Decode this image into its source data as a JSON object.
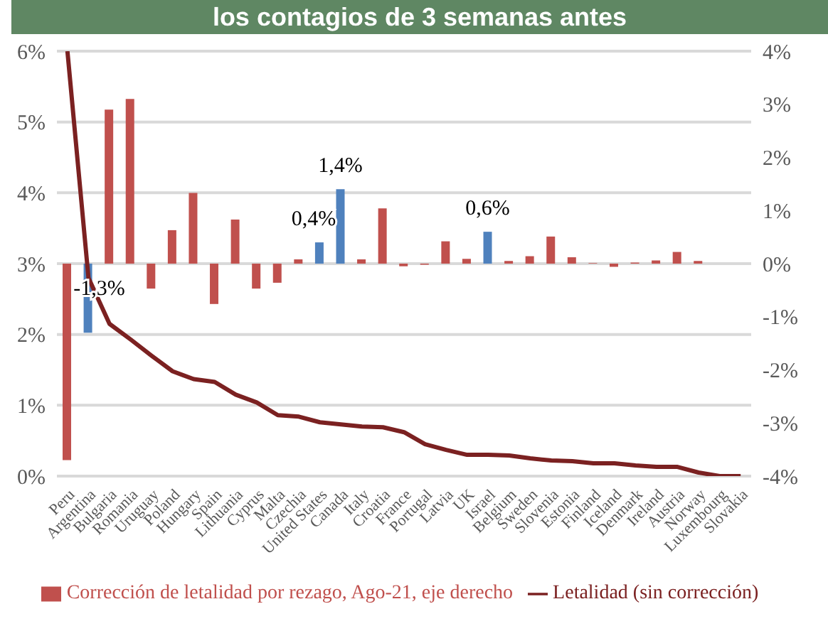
{
  "chart_data": {
    "type": "bar",
    "title": "los contagios de 3 semanas antes",
    "categories": [
      "Peru",
      "Argentina",
      "Bulgaria",
      "Romania",
      "Uruguay",
      "Poland",
      "Hungary",
      "Spain",
      "Lithuania",
      "Cyprus",
      "Malta",
      "Czechia",
      "United States",
      "Canada",
      "Italy",
      "Croatia",
      "France",
      "Portugal",
      "Latvia",
      "UK",
      "Israel",
      "Belgium",
      "Sweden",
      "Slovenia",
      "Estonia",
      "Finland",
      "Iceland",
      "Denmark",
      "Ireland",
      "Austria",
      "Norway",
      "Luxembourg",
      "Slovakia"
    ],
    "series": [
      {
        "name": "Corrección de letalidad por rezago, Ago-21, eje derecho",
        "axis": "y2",
        "color": "#c0504d",
        "colors": [
          "#c0504d",
          "#4f81bd",
          "#c0504d",
          "#c0504d",
          "#c0504d",
          "#c0504d",
          "#c0504d",
          "#c0504d",
          "#c0504d",
          "#c0504d",
          "#c0504d",
          "#c0504d",
          "#4f81bd",
          "#4f81bd",
          "#c0504d",
          "#c0504d",
          "#c0504d",
          "#c0504d",
          "#c0504d",
          "#c0504d",
          "#4f81bd",
          "#c0504d",
          "#c0504d",
          "#c0504d",
          "#c0504d",
          "#c0504d",
          "#c0504d",
          "#c0504d",
          "#c0504d",
          "#c0504d",
          "#c0504d",
          "#c0504d",
          "#c0504d"
        ],
        "values": [
          -3.7,
          -1.3,
          2.9,
          3.1,
          -0.47,
          0.63,
          1.33,
          -0.76,
          0.83,
          -0.47,
          -0.36,
          0.08,
          0.4,
          1.4,
          0.08,
          1.04,
          -0.05,
          -0.02,
          0.42,
          0.09,
          0.6,
          0.05,
          0.14,
          0.51,
          0.12,
          0.01,
          -0.06,
          0.02,
          0.06,
          0.22,
          0.05,
          0,
          0
        ],
        "value_labels": [
          null,
          "-1,3%",
          null,
          null,
          null,
          null,
          null,
          null,
          null,
          null,
          null,
          null,
          "0,4%",
          "1,4%",
          null,
          null,
          null,
          null,
          null,
          null,
          "0,6%",
          null,
          null,
          null,
          null,
          null,
          null,
          null,
          null,
          null,
          null,
          null,
          null
        ]
      },
      {
        "name": "Letalidad (sin corrección)",
        "type": "line",
        "axis": "y",
        "color": "#7b2121",
        "values": [
          6.0,
          2.8,
          2.15,
          1.93,
          1.7,
          1.48,
          1.37,
          1.33,
          1.15,
          1.04,
          0.86,
          0.84,
          0.76,
          0.73,
          0.7,
          0.69,
          0.62,
          0.45,
          0.37,
          0.3,
          0.3,
          0.29,
          0.25,
          0.22,
          0.21,
          0.18,
          0.18,
          0.15,
          0.13,
          0.13,
          0.05,
          0.0,
          0.0
        ]
      }
    ],
    "ylim": [
      0,
      6
    ],
    "yticks": [
      {
        "value": 0,
        "label": "0%"
      },
      {
        "value": 1,
        "label": "1%"
      },
      {
        "value": 2,
        "label": "2%"
      },
      {
        "value": 3,
        "label": "3%"
      },
      {
        "value": 4,
        "label": "4%"
      },
      {
        "value": 5,
        "label": "5%"
      },
      {
        "value": 6,
        "label": "6%"
      }
    ],
    "y2lim": [
      -4,
      4
    ],
    "y2ticks": [
      {
        "value": -4,
        "label": "-4%"
      },
      {
        "value": -3,
        "label": "-3%"
      },
      {
        "value": -2,
        "label": "-2%"
      },
      {
        "value": -1,
        "label": "-1%"
      },
      {
        "value": 0,
        "label": "0%"
      },
      {
        "value": 1,
        "label": "1%"
      },
      {
        "value": 2,
        "label": "2%"
      },
      {
        "value": 3,
        "label": "3%"
      },
      {
        "value": 4,
        "label": "4%"
      }
    ],
    "grid": "y",
    "legend": "bottom"
  }
}
